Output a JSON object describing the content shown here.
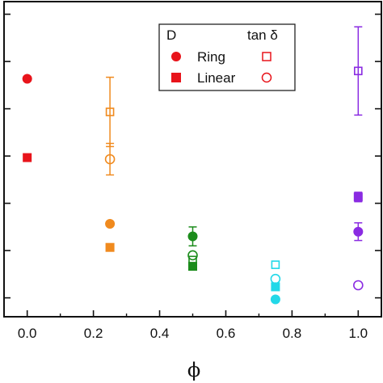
{
  "chart_data": {
    "type": "scatter",
    "title": "",
    "xlabel": "ϕ",
    "ylabel": "",
    "xlim": [
      -0.07,
      1.07
    ],
    "ylim": [
      0,
      10
    ],
    "x_ticks": [
      0.0,
      0.2,
      0.4,
      0.6,
      0.8,
      1.0
    ],
    "x_tick_labels": [
      "0.0",
      "0.2",
      "0.4",
      "0.6",
      "0.8",
      "1.0"
    ],
    "y_ticks": [
      0.6,
      2.1,
      3.6,
      5.1,
      6.6,
      8.1,
      9.6
    ],
    "y_tick_labels_shown": false,
    "grid": false,
    "legend": {
      "placement": "top-right",
      "col_headers": [
        "D",
        "tan δ"
      ],
      "row_labels": [
        "Ring",
        "Linear"
      ]
    },
    "groups": [
      {
        "x": 0.0,
        "color": "#e8141b"
      },
      {
        "x": 0.25,
        "color": "#f08a1e"
      },
      {
        "x": 0.5,
        "color": "#1c8c1c"
      },
      {
        "x": 0.75,
        "color": "#22d8e8"
      },
      {
        "x": 1.0,
        "color": "#8a2be2"
      }
    ],
    "series": [
      {
        "name": "D Ring",
        "marker": "filled-circle",
        "points": [
          {
            "x": 0.0,
            "y": 7.55
          },
          {
            "x": 0.25,
            "y": 2.95
          },
          {
            "x": 0.5,
            "y": 2.55,
            "err": 0.3
          },
          {
            "x": 0.75,
            "y": 0.55
          },
          {
            "x": 1.0,
            "y": 2.7,
            "err": 0.28
          }
        ]
      },
      {
        "name": "D Linear",
        "marker": "filled-square",
        "points": [
          {
            "x": 0.0,
            "y": 5.05
          },
          {
            "x": 0.25,
            "y": 2.2
          },
          {
            "x": 0.5,
            "y": 1.6
          },
          {
            "x": 0.75,
            "y": 0.95
          },
          {
            "x": 1.0,
            "y": 3.8,
            "err": 0.15
          }
        ]
      },
      {
        "name": "tan δ Ring",
        "marker": "open-square",
        "points": [
          {
            "x": 0.25,
            "y": 6.5,
            "err": 1.1
          },
          {
            "x": 0.5,
            "y": 1.8
          },
          {
            "x": 0.75,
            "y": 1.65
          },
          {
            "x": 1.0,
            "y": 7.8,
            "err": 1.4
          }
        ]
      },
      {
        "name": "tan δ Linear",
        "marker": "open-circle",
        "points": [
          {
            "x": 0.25,
            "y": 5.0,
            "err": 0.5
          },
          {
            "x": 0.5,
            "y": 1.95
          },
          {
            "x": 0.75,
            "y": 1.2
          },
          {
            "x": 1.0,
            "y": 1.0
          }
        ]
      }
    ]
  }
}
